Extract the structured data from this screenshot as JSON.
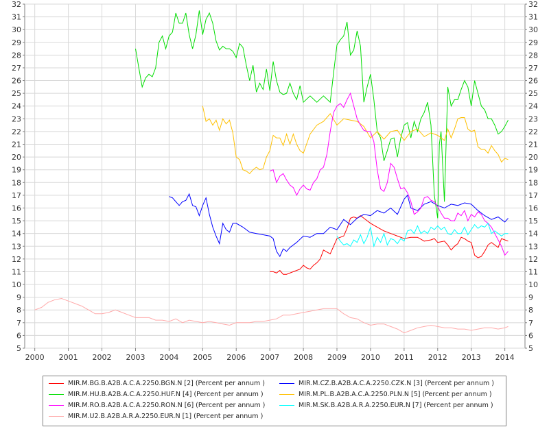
{
  "chart_data": {
    "type": "line",
    "title": "",
    "xlabel": "",
    "ylabel": "",
    "xlim": [
      1999.7,
      2014.6
    ],
    "ylim": [
      5,
      32
    ],
    "xticks": [
      "2000",
      "2001",
      "2002",
      "2003",
      "2004",
      "2005",
      "2006",
      "2007",
      "2008",
      "2009",
      "2010",
      "2011",
      "2012",
      "2013",
      "2014"
    ],
    "yticks": [
      "5",
      "6",
      "7",
      "8",
      "9",
      "10",
      "11",
      "12",
      "13",
      "14",
      "15",
      "16",
      "17",
      "18",
      "19",
      "20",
      "21",
      "22",
      "23",
      "24",
      "25",
      "26",
      "27",
      "28",
      "29",
      "30",
      "31",
      "32"
    ],
    "grid": true,
    "legend_position": "bottom",
    "series": [
      {
        "name": "MIR.M.BG.B.A2B.A.C.A.2250.BGN.N [2] (Percent per annum )",
        "color": "#ff0000",
        "x": [
          2007.0,
          2007.1,
          2007.2,
          2007.3,
          2007.4,
          2007.5,
          2007.7,
          2007.9,
          2008.0,
          2008.1,
          2008.2,
          2008.3,
          2008.4,
          2008.5,
          2008.6,
          2008.8,
          2008.9,
          2009.0,
          2009.1,
          2009.2,
          2009.3,
          2009.4,
          2009.5,
          2009.6,
          2009.7,
          2009.8,
          2010.0,
          2010.2,
          2010.4,
          2010.6,
          2010.8,
          2011.0,
          2011.2,
          2011.4,
          2011.6,
          2011.8,
          2011.9,
          2012.0,
          2012.2,
          2012.3,
          2012.4,
          2012.5,
          2012.6,
          2012.7,
          2012.8,
          2012.9,
          2013.0,
          2013.1,
          2013.2,
          2013.3,
          2013.4,
          2013.5,
          2013.6,
          2013.7,
          2013.8,
          2013.9,
          2014.0,
          2014.1
        ],
        "values": [
          11.0,
          11.0,
          10.9,
          11.1,
          10.8,
          10.8,
          11.0,
          11.2,
          11.5,
          11.3,
          11.2,
          11.5,
          11.7,
          12.0,
          12.7,
          12.4,
          13.0,
          13.6,
          13.7,
          13.8,
          14.4,
          15.2,
          15.3,
          15.2,
          15.4,
          15.2,
          14.8,
          14.5,
          14.2,
          14.0,
          13.8,
          13.6,
          13.7,
          13.7,
          13.4,
          13.5,
          13.6,
          13.3,
          13.4,
          13.1,
          12.7,
          13.0,
          13.2,
          13.7,
          13.6,
          13.4,
          13.3,
          12.3,
          12.1,
          12.2,
          12.6,
          13.1,
          13.3,
          13.1,
          12.9,
          13.6,
          13.5,
          13.4
        ]
      },
      {
        "name": "MIR.M.CZ.B.A2B.A.C.A.2250.CZK.N [3] (Percent per annum )",
        "color": "#0000ff",
        "x": [
          2004.0,
          2004.1,
          2004.2,
          2004.3,
          2004.4,
          2004.5,
          2004.6,
          2004.7,
          2004.8,
          2004.9,
          2005.0,
          2005.1,
          2005.2,
          2005.3,
          2005.4,
          2005.5,
          2005.6,
          2005.7,
          2005.8,
          2005.9,
          2006.0,
          2006.2,
          2006.4,
          2006.6,
          2006.8,
          2007.0,
          2007.1,
          2007.2,
          2007.3,
          2007.4,
          2007.5,
          2007.6,
          2007.8,
          2008.0,
          2008.2,
          2008.4,
          2008.6,
          2008.8,
          2009.0,
          2009.2,
          2009.4,
          2009.6,
          2009.8,
          2010.0,
          2010.2,
          2010.4,
          2010.6,
          2010.8,
          2011.0,
          2011.1,
          2011.2,
          2011.4,
          2011.6,
          2011.8,
          2012.0,
          2012.2,
          2012.4,
          2012.6,
          2012.8,
          2013.0,
          2013.2,
          2013.4,
          2013.6,
          2013.8,
          2014.0,
          2014.1
        ],
        "values": [
          16.9,
          16.8,
          16.5,
          16.2,
          16.5,
          16.6,
          17.1,
          16.2,
          16.1,
          15.4,
          16.2,
          16.8,
          15.5,
          14.5,
          13.8,
          13.2,
          14.8,
          14.3,
          14.1,
          14.8,
          14.8,
          14.5,
          14.1,
          14.0,
          13.9,
          13.8,
          13.6,
          12.6,
          12.2,
          12.8,
          12.6,
          12.9,
          13.3,
          13.8,
          13.7,
          14.0,
          14.0,
          14.5,
          14.3,
          15.1,
          14.7,
          15.2,
          15.5,
          15.4,
          15.8,
          15.6,
          16.0,
          15.5,
          16.7,
          17.0,
          16.0,
          15.8,
          16.3,
          16.5,
          16.2,
          16.0,
          16.3,
          16.2,
          16.4,
          16.3,
          15.8,
          15.4,
          15.1,
          15.3,
          14.9,
          15.2
        ]
      },
      {
        "name": "MIR.M.HU.B.A2B.A.C.A.2250.HUF.N [4] (Percent per annum )",
        "color": "#00dd00",
        "x": [
          2003.0,
          2003.1,
          2003.2,
          2003.3,
          2003.4,
          2003.5,
          2003.6,
          2003.7,
          2003.8,
          2003.9,
          2004.0,
          2004.1,
          2004.2,
          2004.3,
          2004.4,
          2004.5,
          2004.6,
          2004.7,
          2004.8,
          2004.9,
          2005.0,
          2005.1,
          2005.2,
          2005.3,
          2005.4,
          2005.5,
          2005.6,
          2005.7,
          2005.8,
          2005.9,
          2006.0,
          2006.1,
          2006.2,
          2006.3,
          2006.4,
          2006.5,
          2006.6,
          2006.7,
          2006.8,
          2006.9,
          2007.0,
          2007.1,
          2007.2,
          2007.3,
          2007.4,
          2007.5,
          2007.6,
          2007.7,
          2007.8,
          2007.9,
          2008.0,
          2008.2,
          2008.4,
          2008.6,
          2008.8,
          2008.9,
          2009.0,
          2009.1,
          2009.2,
          2009.3,
          2009.4,
          2009.5,
          2009.6,
          2009.7,
          2009.8,
          2009.9,
          2010.0,
          2010.1,
          2010.2,
          2010.3,
          2010.4,
          2010.5,
          2010.6,
          2010.7,
          2010.8,
          2010.9,
          2011.0,
          2011.1,
          2011.2,
          2011.3,
          2011.4,
          2011.5,
          2011.6,
          2011.7,
          2011.8,
          2011.9,
          2012.0,
          2012.05,
          2012.1,
          2012.2,
          2012.3,
          2012.4,
          2012.5,
          2012.6,
          2012.7,
          2012.8,
          2012.9,
          2013.0,
          2013.1,
          2013.2,
          2013.3,
          2013.4,
          2013.5,
          2013.6,
          2013.7,
          2013.8,
          2013.9,
          2014.0,
          2014.1
        ],
        "values": [
          28.5,
          27.0,
          25.5,
          26.2,
          26.5,
          26.3,
          27.0,
          29.0,
          29.5,
          28.5,
          29.5,
          29.8,
          31.3,
          30.5,
          30.5,
          31.3,
          29.6,
          28.5,
          29.6,
          31.5,
          29.6,
          30.8,
          31.3,
          30.5,
          29.1,
          28.4,
          28.7,
          28.5,
          28.5,
          28.3,
          27.8,
          28.9,
          28.6,
          27.2,
          26.0,
          27.2,
          25.1,
          25.8,
          25.3,
          26.9,
          25.2,
          27.5,
          26.0,
          25.1,
          24.9,
          25.0,
          25.8,
          25.0,
          24.5,
          25.6,
          24.3,
          24.8,
          24.3,
          24.8,
          24.3,
          26.6,
          28.8,
          29.2,
          29.5,
          30.6,
          28.0,
          28.4,
          29.9,
          28.7,
          24.3,
          25.5,
          26.5,
          24.5,
          22.0,
          21.5,
          19.7,
          20.5,
          21.4,
          21.5,
          20.0,
          21.5,
          22.5,
          22.7,
          21.5,
          22.8,
          22.0,
          23.0,
          23.5,
          24.3,
          22.5,
          17.0,
          15.2,
          21.0,
          22.0,
          16.5,
          25.5,
          24.0,
          24.5,
          24.5,
          25.3,
          26.0,
          25.5,
          24.0,
          26.0,
          25.0,
          24.0,
          23.7,
          23.0,
          23.0,
          22.5,
          21.8,
          22.0,
          22.4,
          22.9
        ]
      },
      {
        "name": "MIR.M.PL.B.A2B.A.C.A.2250.PLN.N [5] (Percent per annum )",
        "color": "#ffc000",
        "x": [
          2005.0,
          2005.1,
          2005.2,
          2005.3,
          2005.4,
          2005.5,
          2005.6,
          2005.7,
          2005.8,
          2005.9,
          2006.0,
          2006.1,
          2006.2,
          2006.3,
          2006.4,
          2006.5,
          2006.6,
          2006.7,
          2006.8,
          2006.9,
          2007.0,
          2007.1,
          2007.2,
          2007.3,
          2007.4,
          2007.5,
          2007.6,
          2007.7,
          2007.8,
          2007.9,
          2008.0,
          2008.2,
          2008.4,
          2008.6,
          2008.8,
          2009.0,
          2009.2,
          2009.4,
          2009.6,
          2009.8,
          2010.0,
          2010.2,
          2010.4,
          2010.6,
          2010.8,
          2011.0,
          2011.2,
          2011.4,
          2011.6,
          2011.8,
          2012.0,
          2012.2,
          2012.3,
          2012.4,
          2012.5,
          2012.6,
          2012.7,
          2012.8,
          2012.9,
          2013.0,
          2013.1,
          2013.2,
          2013.3,
          2013.4,
          2013.5,
          2013.6,
          2013.7,
          2013.8,
          2013.9,
          2014.0,
          2014.1
        ],
        "values": [
          24.0,
          22.8,
          23.0,
          22.5,
          22.9,
          22.1,
          23.0,
          22.6,
          22.9,
          21.9,
          20.0,
          19.8,
          19.0,
          18.9,
          18.7,
          19.0,
          19.2,
          19.0,
          19.1,
          20.0,
          20.5,
          21.7,
          21.5,
          21.5,
          20.9,
          21.8,
          21.0,
          21.8,
          21.0,
          20.5,
          20.3,
          21.8,
          22.5,
          22.8,
          23.4,
          22.5,
          23.0,
          22.9,
          22.8,
          22.4,
          21.5,
          22.0,
          21.4,
          22.0,
          22.1,
          21.3,
          22.0,
          22.2,
          21.6,
          21.9,
          21.7,
          21.3,
          22.2,
          21.5,
          22.2,
          23.0,
          23.1,
          23.1,
          22.2,
          22.0,
          22.1,
          20.8,
          20.6,
          20.6,
          20.3,
          20.9,
          20.5,
          20.2,
          19.6,
          19.9,
          19.8
        ]
      },
      {
        "name": "MIR.M.RO.B.A2B.A.C.A.2250.RON.N [6] (Percent per annum )",
        "color": "#ff00ff",
        "x": [
          2007.0,
          2007.1,
          2007.2,
          2007.3,
          2007.4,
          2007.5,
          2007.6,
          2007.7,
          2007.8,
          2007.9,
          2008.0,
          2008.1,
          2008.2,
          2008.3,
          2008.4,
          2008.5,
          2008.6,
          2008.7,
          2008.8,
          2008.9,
          2009.0,
          2009.1,
          2009.2,
          2009.3,
          2009.4,
          2009.5,
          2009.6,
          2009.7,
          2009.8,
          2009.9,
          2010.0,
          2010.1,
          2010.2,
          2010.3,
          2010.4,
          2010.5,
          2010.6,
          2010.7,
          2010.8,
          2010.9,
          2011.0,
          2011.1,
          2011.2,
          2011.3,
          2011.4,
          2011.5,
          2011.6,
          2011.7,
          2011.8,
          2011.9,
          2012.0,
          2012.1,
          2012.2,
          2012.3,
          2012.4,
          2012.5,
          2012.6,
          2012.7,
          2012.8,
          2012.9,
          2013.0,
          2013.1,
          2013.2,
          2013.3,
          2013.4,
          2013.5,
          2013.6,
          2013.7,
          2013.8,
          2013.9,
          2014.0,
          2014.1
        ],
        "values": [
          18.9,
          19.0,
          18.0,
          18.5,
          18.7,
          18.2,
          17.8,
          17.6,
          17.0,
          17.5,
          17.8,
          17.5,
          17.4,
          18.0,
          18.3,
          19.0,
          19.2,
          20.2,
          22.0,
          23.5,
          24.0,
          24.2,
          23.9,
          24.5,
          25.0,
          24.0,
          23.0,
          22.5,
          22.1,
          22.0,
          22.0,
          21.2,
          19.0,
          17.5,
          17.3,
          18.0,
          19.5,
          19.2,
          18.3,
          17.5,
          17.6,
          17.2,
          16.5,
          15.5,
          15.7,
          16.0,
          16.8,
          16.9,
          16.6,
          16.5,
          16.1,
          15.6,
          15.2,
          15.2,
          15.0,
          15.0,
          15.6,
          15.4,
          15.8,
          15.0,
          15.5,
          15.3,
          15.7,
          15.5,
          15.0,
          14.8,
          14.5,
          14.0,
          13.5,
          13.0,
          12.3,
          12.6
        ]
      },
      {
        "name": "MIR.M.SK.B.A2B.A.R.A.2250.EUR.N [7] (Percent per annum )",
        "color": "#00ffff",
        "x": [
          2009.0,
          2009.1,
          2009.2,
          2009.3,
          2009.4,
          2009.5,
          2009.6,
          2009.7,
          2009.8,
          2009.9,
          2010.0,
          2010.1,
          2010.2,
          2010.3,
          2010.4,
          2010.5,
          2010.6,
          2010.7,
          2010.8,
          2010.9,
          2011.0,
          2011.1,
          2011.2,
          2011.3,
          2011.4,
          2011.5,
          2011.6,
          2011.7,
          2011.8,
          2011.9,
          2012.0,
          2012.1,
          2012.2,
          2012.3,
          2012.4,
          2012.5,
          2012.6,
          2012.7,
          2012.8,
          2012.9,
          2013.0,
          2013.1,
          2013.2,
          2013.3,
          2013.4,
          2013.5,
          2013.6,
          2013.7,
          2013.8,
          2013.9,
          2014.0,
          2014.1
        ],
        "values": [
          13.8,
          13.4,
          13.1,
          13.2,
          13.0,
          13.5,
          13.3,
          13.9,
          13.2,
          13.7,
          14.5,
          13.0,
          13.7,
          13.3,
          14.0,
          13.1,
          13.6,
          13.5,
          13.2,
          13.6,
          13.4,
          14.2,
          14.3,
          14.0,
          14.6,
          14.0,
          14.2,
          14.0,
          14.5,
          14.3,
          14.6,
          14.3,
          14.5,
          14.0,
          13.9,
          14.3,
          14.0,
          14.0,
          14.5,
          13.9,
          14.3,
          14.7,
          14.4,
          14.6,
          14.5,
          14.8,
          14.0,
          14.2,
          14.0,
          13.8,
          14.0,
          14.0
        ]
      },
      {
        "name": "MIR.M.U2.B.A2B.A.R.A.2250.EUR.N [1] (Percent per annum )",
        "color": "#ffaaaa",
        "x": [
          2000.0,
          2000.2,
          2000.4,
          2000.6,
          2000.8,
          2001.0,
          2001.2,
          2001.4,
          2001.6,
          2001.8,
          2002.0,
          2002.2,
          2002.4,
          2002.6,
          2002.8,
          2003.0,
          2003.2,
          2003.4,
          2003.6,
          2003.8,
          2004.0,
          2004.2,
          2004.4,
          2004.6,
          2004.8,
          2005.0,
          2005.2,
          2005.4,
          2005.6,
          2005.8,
          2006.0,
          2006.2,
          2006.4,
          2006.6,
          2006.8,
          2007.0,
          2007.2,
          2007.4,
          2007.6,
          2007.8,
          2008.0,
          2008.2,
          2008.4,
          2008.6,
          2008.8,
          2009.0,
          2009.2,
          2009.4,
          2009.6,
          2009.8,
          2010.0,
          2010.2,
          2010.4,
          2010.6,
          2010.8,
          2011.0,
          2011.2,
          2011.4,
          2011.6,
          2011.8,
          2012.0,
          2012.2,
          2012.4,
          2012.6,
          2012.8,
          2013.0,
          2013.2,
          2013.4,
          2013.6,
          2013.8,
          2014.0,
          2014.1
        ],
        "values": [
          8.0,
          8.2,
          8.6,
          8.8,
          8.9,
          8.7,
          8.5,
          8.3,
          8.0,
          7.7,
          7.7,
          7.8,
          8.0,
          7.8,
          7.6,
          7.4,
          7.4,
          7.4,
          7.2,
          7.2,
          7.1,
          7.3,
          7.0,
          7.2,
          7.1,
          7.0,
          7.1,
          7.0,
          6.9,
          6.8,
          7.0,
          7.0,
          7.0,
          7.1,
          7.1,
          7.2,
          7.3,
          7.6,
          7.6,
          7.7,
          7.8,
          7.9,
          8.0,
          8.1,
          8.1,
          8.1,
          7.7,
          7.4,
          7.3,
          7.0,
          6.8,
          6.9,
          6.9,
          6.7,
          6.5,
          6.2,
          6.4,
          6.6,
          6.7,
          6.8,
          6.7,
          6.6,
          6.6,
          6.5,
          6.5,
          6.4,
          6.5,
          6.6,
          6.6,
          6.5,
          6.6,
          6.7
        ]
      }
    ]
  }
}
